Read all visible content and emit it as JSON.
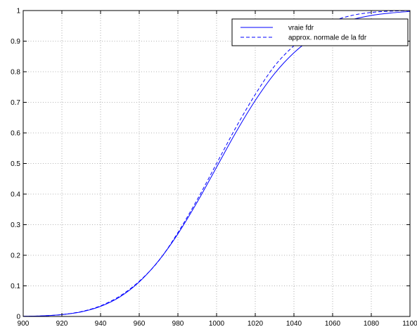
{
  "chart_data": {
    "type": "line",
    "title": "",
    "xlabel": "",
    "ylabel": "",
    "xlim": [
      900,
      1100
    ],
    "ylim": [
      0,
      1
    ],
    "grid": true,
    "legend_position": "top-right",
    "x_ticks": [
      900,
      920,
      940,
      960,
      980,
      1000,
      1020,
      1040,
      1060,
      1080,
      1100
    ],
    "y_ticks": [
      0,
      0.1,
      0.2,
      0.3,
      0.4,
      0.5,
      0.6,
      0.7,
      0.8,
      0.9,
      1
    ],
    "x": [
      900,
      910,
      920,
      930,
      940,
      950,
      960,
      970,
      980,
      990,
      1000,
      1010,
      1020,
      1030,
      1040,
      1050,
      1060,
      1070,
      1080,
      1090,
      1100
    ],
    "series": [
      {
        "name": "vraie fdr",
        "style": "solid",
        "color": "#0000ff",
        "values": [
          0.0005,
          0.002,
          0.006,
          0.015,
          0.033,
          0.064,
          0.113,
          0.182,
          0.27,
          0.374,
          0.488,
          0.602,
          0.706,
          0.794,
          0.862,
          0.912,
          0.947,
          0.97,
          0.984,
          0.992,
          0.997
        ]
      },
      {
        "name": "approx. normale de la fdr",
        "style": "dashed",
        "color": "#0000ff",
        "values": [
          0.0004,
          0.0019,
          0.0062,
          0.0159,
          0.0349,
          0.0668,
          0.1151,
          0.1812,
          0.2743,
          0.3821,
          0.5,
          0.6179,
          0.7257,
          0.8188,
          0.8849,
          0.9332,
          0.9651,
          0.9841,
          0.9938,
          0.9981,
          0.9996
        ]
      }
    ]
  }
}
